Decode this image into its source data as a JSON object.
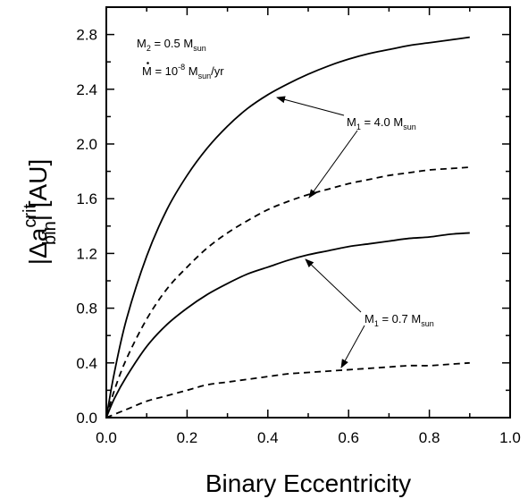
{
  "chart_data": {
    "type": "line",
    "xlabel": "Binary Eccentricity",
    "ylabel_parts": {
      "base": "|Δa",
      "sup": "crit",
      "sub": "bin",
      "tail": "| [AU]"
    },
    "xlim": [
      0.0,
      1.0
    ],
    "ylim": [
      0.0,
      3.0
    ],
    "xticks": [
      "0.0",
      "0.2",
      "0.4",
      "0.6",
      "0.8",
      "1.0"
    ],
    "yticks": [
      "0.0",
      "0.4",
      "0.8",
      "1.2",
      "1.6",
      "2.0",
      "2.4",
      "2.8"
    ],
    "grid": false,
    "legend": "none",
    "series": [
      {
        "style": "solid",
        "x": [
          0.0,
          0.02,
          0.05,
          0.1,
          0.15,
          0.2,
          0.25,
          0.3,
          0.35,
          0.4,
          0.45,
          0.5,
          0.55,
          0.6,
          0.65,
          0.7,
          0.75,
          0.8,
          0.85,
          0.9
        ],
        "y": [
          0.0,
          0.33,
          0.72,
          1.18,
          1.52,
          1.77,
          1.97,
          2.13,
          2.26,
          2.36,
          2.44,
          2.51,
          2.57,
          2.62,
          2.66,
          2.69,
          2.72,
          2.74,
          2.76,
          2.78
        ]
      },
      {
        "style": "dashed",
        "x": [
          0.0,
          0.02,
          0.05,
          0.1,
          0.15,
          0.2,
          0.25,
          0.3,
          0.35,
          0.4,
          0.45,
          0.5,
          0.55,
          0.6,
          0.65,
          0.7,
          0.75,
          0.8,
          0.85,
          0.9
        ],
        "y": [
          0.0,
          0.2,
          0.43,
          0.72,
          0.94,
          1.1,
          1.24,
          1.35,
          1.44,
          1.52,
          1.58,
          1.63,
          1.67,
          1.71,
          1.74,
          1.77,
          1.79,
          1.81,
          1.82,
          1.83
        ]
      },
      {
        "style": "solid",
        "x": [
          0.0,
          0.02,
          0.05,
          0.1,
          0.15,
          0.2,
          0.25,
          0.3,
          0.35,
          0.4,
          0.45,
          0.5,
          0.55,
          0.6,
          0.65,
          0.7,
          0.75,
          0.8,
          0.85,
          0.9
        ],
        "y": [
          0.0,
          0.14,
          0.3,
          0.52,
          0.68,
          0.8,
          0.9,
          0.98,
          1.05,
          1.1,
          1.15,
          1.19,
          1.22,
          1.25,
          1.27,
          1.29,
          1.31,
          1.32,
          1.34,
          1.35
        ]
      },
      {
        "style": "dashed",
        "x": [
          0.0,
          0.05,
          0.1,
          0.15,
          0.2,
          0.25,
          0.3,
          0.35,
          0.4,
          0.45,
          0.5,
          0.55,
          0.6,
          0.65,
          0.7,
          0.75,
          0.8,
          0.85,
          0.9
        ],
        "y": [
          0.0,
          0.06,
          0.12,
          0.16,
          0.2,
          0.24,
          0.26,
          0.28,
          0.3,
          0.32,
          0.33,
          0.34,
          0.35,
          0.36,
          0.37,
          0.38,
          0.38,
          0.39,
          0.4
        ]
      }
    ],
    "annotations": {
      "m2": {
        "a": "M",
        "a_sub": "2",
        "b": " = 0.5 M",
        "b_sub": "sun"
      },
      "mdot": {
        "a": "M",
        "b": " = 10",
        "b_sup": "-8",
        "c": " M",
        "c_sub": "sun",
        "d": "/yr"
      },
      "m1_high": {
        "a": "M",
        "a_sub": "1",
        "b": " = 4.0 M",
        "b_sub": "sun"
      },
      "m1_low": {
        "a": "M",
        "a_sub": "1",
        "b": " = 0.7 M",
        "b_sub": "sun"
      }
    }
  }
}
